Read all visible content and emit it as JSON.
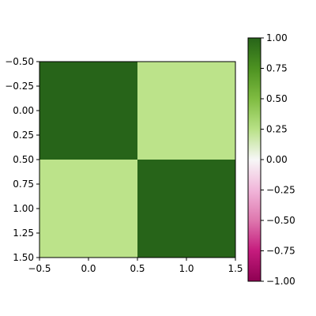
{
  "chart_data": {
    "type": "heatmap",
    "title": "",
    "xlabel": "",
    "ylabel": "",
    "x_range": [
      -0.5,
      1.5
    ],
    "y_range": [
      -0.5,
      1.5
    ],
    "y_inverted": true,
    "x_ticks": [
      "−0.5",
      "0.0",
      "0.5",
      "1.0",
      "1.5"
    ],
    "x_tick_values": [
      -0.5,
      0.0,
      0.5,
      1.0,
      1.5
    ],
    "y_ticks": [
      "−0.50",
      "−0.25",
      "0.00",
      "0.25",
      "0.50",
      "0.75",
      "1.00",
      "1.25",
      "1.50"
    ],
    "y_tick_values": [
      -0.5,
      -0.25,
      0.0,
      0.25,
      0.5,
      0.75,
      1.0,
      1.25,
      1.5
    ],
    "matrix": [
      [
        1.0,
        0.4
      ],
      [
        0.4,
        1.0
      ]
    ],
    "colormap": "PiYG",
    "colorbar": {
      "range": [
        -1.0,
        1.0
      ],
      "ticks": [
        "1.00",
        "0.75",
        "0.50",
        "0.25",
        "0.00",
        "−0.25",
        "−0.50",
        "−0.75",
        "−1.00"
      ],
      "tick_values": [
        1.0,
        0.75,
        0.5,
        0.25,
        0.0,
        -0.25,
        -0.5,
        -0.75,
        -1.0
      ],
      "gradient_stops": [
        {
          "value": 1.0,
          "color": "#276419"
        },
        {
          "value": 0.75,
          "color": "#4d9221"
        },
        {
          "value": 0.5,
          "color": "#7fbc41"
        },
        {
          "value": 0.25,
          "color": "#b8e186"
        },
        {
          "value": 0.0,
          "color": "#f7f7f7"
        },
        {
          "value": -0.25,
          "color": "#f1b6da"
        },
        {
          "value": -0.5,
          "color": "#de77ae"
        },
        {
          "value": -0.75,
          "color": "#c51b7d"
        },
        {
          "value": -1.0,
          "color": "#8e0152"
        }
      ]
    },
    "cell_colors": [
      [
        "#276419",
        "#bce38a"
      ],
      [
        "#bce38a",
        "#276419"
      ]
    ],
    "grid": false
  }
}
